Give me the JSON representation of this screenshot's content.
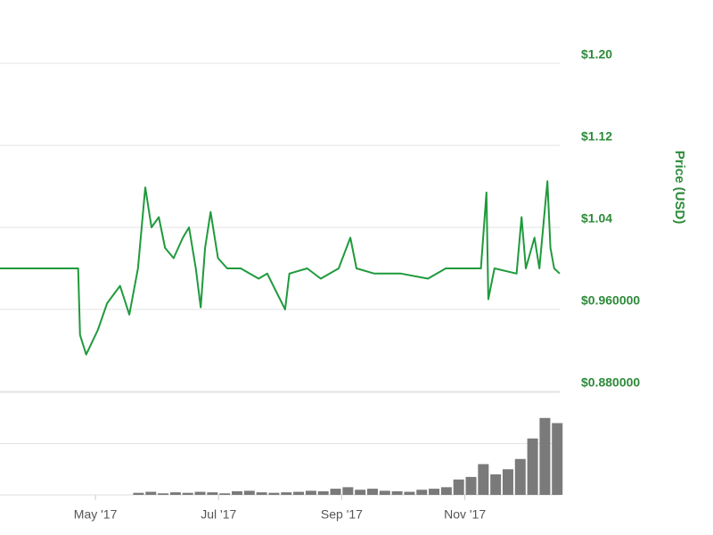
{
  "chart_data": {
    "type": "line",
    "y_axis_label": "Price (USD)",
    "x": [
      3.45,
      4.72,
      4.75,
      4.85,
      5.04,
      5.19,
      5.4,
      5.55,
      5.69,
      5.81,
      5.91,
      6.03,
      6.13,
      6.27,
      6.42,
      6.52,
      6.63,
      6.71,
      6.78,
      6.87,
      6.99,
      7.14,
      7.36,
      7.65,
      7.79,
      8.08,
      8.15,
      8.44,
      8.66,
      8.95,
      9.14,
      9.24,
      9.53,
      9.96,
      10.4,
      10.69,
      10.98,
      11.26,
      11.35,
      11.38,
      11.48,
      11.84,
      11.92,
      11.99,
      12.13,
      12.21,
      12.34,
      12.39,
      12.45,
      12.54
    ],
    "series": [
      {
        "name": "Price",
        "color": "#1f9a3c",
        "values": [
          1.0,
          1.0,
          0.935,
          0.916,
          0.94,
          0.966,
          0.983,
          0.955,
          1.0,
          1.079,
          1.04,
          1.05,
          1.02,
          1.01,
          1.03,
          1.04,
          1.0,
          0.962,
          1.02,
          1.055,
          1.01,
          1.0,
          1.0,
          0.99,
          0.995,
          0.96,
          0.995,
          1.0,
          0.99,
          1.0,
          1.03,
          1.0,
          0.995,
          0.995,
          0.99,
          1.0,
          1.0,
          1.0,
          1.074,
          0.97,
          1.0,
          0.995,
          1.05,
          1.0,
          1.03,
          1.0,
          1.085,
          1.02,
          1.0,
          0.995
        ]
      }
    ],
    "xlim": [
      3.45,
      12.54
    ],
    "xticks": [
      {
        "value": 5,
        "label": "May '17"
      },
      {
        "value": 7,
        "label": "Jul '17"
      },
      {
        "value": 9,
        "label": "Sep '17"
      },
      {
        "value": 11,
        "label": "Nov '17"
      }
    ],
    "ylim": [
      0.88,
      1.2
    ],
    "yticks": [
      {
        "value": 0.88,
        "label": "$0.880000"
      },
      {
        "value": 0.96,
        "label": "$0.960000"
      },
      {
        "value": 1.04,
        "label": "$1.04"
      },
      {
        "value": 1.12,
        "label": "$1.12"
      },
      {
        "value": 1.2,
        "label": "$1.20"
      }
    ],
    "grid": true,
    "volume": {
      "color": "#7a7a7a",
      "x": [
        5.7,
        5.9,
        6.1,
        6.3,
        6.5,
        6.7,
        6.9,
        7.1,
        7.3,
        7.5,
        7.7,
        7.9,
        8.1,
        8.3,
        8.5,
        8.7,
        8.9,
        9.1,
        9.3,
        9.5,
        9.7,
        9.9,
        10.1,
        10.3,
        10.5,
        10.7,
        10.9,
        11.1,
        11.3,
        11.5,
        11.7,
        11.9,
        12.1,
        12.3,
        12.5
      ],
      "values": [
        0.04,
        0.06,
        0.03,
        0.05,
        0.04,
        0.06,
        0.05,
        0.03,
        0.07,
        0.08,
        0.05,
        0.04,
        0.05,
        0.06,
        0.08,
        0.07,
        0.12,
        0.15,
        0.1,
        0.12,
        0.08,
        0.07,
        0.06,
        0.1,
        0.12,
        0.15,
        0.3,
        0.35,
        0.6,
        0.4,
        0.5,
        0.7,
        1.1,
        1.5,
        1.4
      ],
      "ylim": [
        0,
        2
      ],
      "grid_values": [
        1,
        2
      ]
    }
  }
}
